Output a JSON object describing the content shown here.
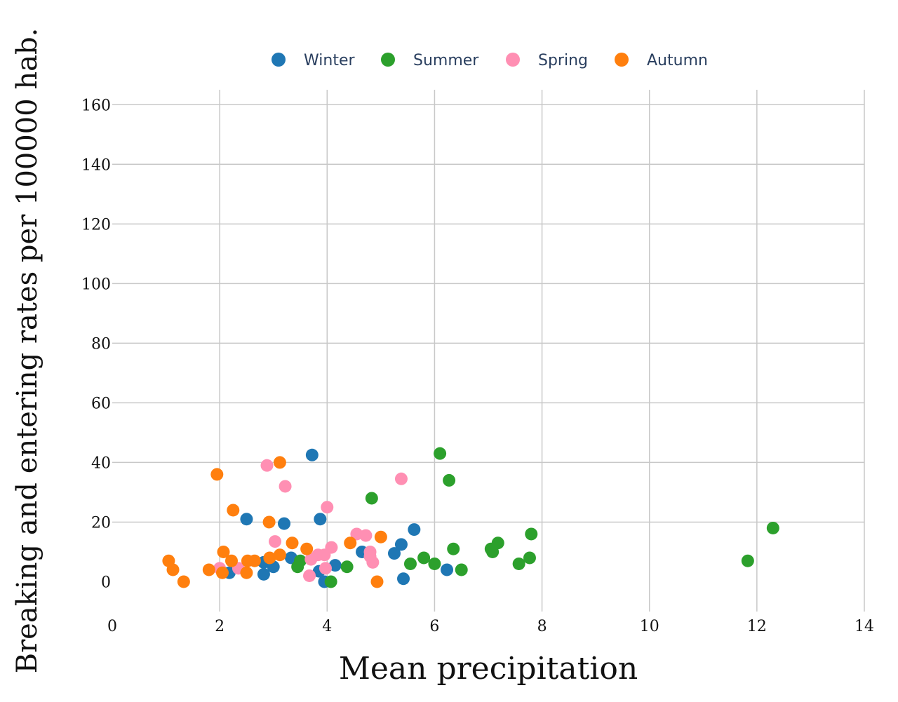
{
  "chart_data": {
    "type": "scatter",
    "xlabel": "Mean precipitation",
    "ylabel": "Breaking and entering rates per 100000 hab.",
    "xlim": [
      0,
      14
    ],
    "ylim": [
      -10,
      165
    ],
    "xticks": [
      0,
      2,
      4,
      6,
      8,
      10,
      12,
      14
    ],
    "yticks": [
      0,
      20,
      40,
      60,
      80,
      100,
      120,
      140,
      160
    ],
    "grid": true,
    "legend_position": "top-center",
    "series": [
      {
        "name": "Winter",
        "color": "#1f77b4",
        "points": [
          [
            3.72,
            42.5
          ],
          [
            2.5,
            21
          ],
          [
            3.2,
            19.5
          ],
          [
            3.87,
            21
          ],
          [
            5.62,
            17.5
          ],
          [
            5.38,
            12.5
          ],
          [
            5.25,
            9.5
          ],
          [
            4.65,
            10
          ],
          [
            3.33,
            8
          ],
          [
            2.82,
            6.5
          ],
          [
            3.0,
            5
          ],
          [
            2.18,
            3
          ],
          [
            2.82,
            2.5
          ],
          [
            3.85,
            3.5
          ],
          [
            3.95,
            0
          ],
          [
            4.15,
            5.5
          ],
          [
            5.42,
            1
          ],
          [
            6.23,
            4
          ]
        ]
      },
      {
        "name": "Summer",
        "color": "#2ca02c",
        "points": [
          [
            6.1,
            43
          ],
          [
            6.27,
            34
          ],
          [
            4.83,
            28
          ],
          [
            7.8,
            16
          ],
          [
            7.18,
            13
          ],
          [
            7.05,
            11
          ],
          [
            7.08,
            10
          ],
          [
            6.35,
            11
          ],
          [
            5.8,
            8
          ],
          [
            6.0,
            6
          ],
          [
            5.55,
            6
          ],
          [
            6.5,
            4
          ],
          [
            7.57,
            6
          ],
          [
            7.77,
            8
          ],
          [
            4.37,
            5
          ],
          [
            3.45,
            5
          ],
          [
            3.5,
            7
          ],
          [
            4.07,
            0
          ],
          [
            12.3,
            18
          ],
          [
            11.83,
            7
          ]
        ]
      },
      {
        "name": "Spring",
        "color": "#ff8fb3",
        "points": [
          [
            2.88,
            39
          ],
          [
            3.22,
            32
          ],
          [
            5.38,
            34.5
          ],
          [
            4.0,
            25
          ],
          [
            4.55,
            16
          ],
          [
            4.72,
            15.5
          ],
          [
            3.03,
            13.5
          ],
          [
            4.08,
            11.5
          ],
          [
            3.83,
            9
          ],
          [
            3.95,
            9
          ],
          [
            4.8,
            10
          ],
          [
            4.85,
            6.5
          ],
          [
            3.7,
            7.5
          ],
          [
            3.97,
            4.5
          ],
          [
            3.67,
            2
          ],
          [
            2.0,
            4.5
          ],
          [
            2.35,
            4.5
          ],
          [
            4.8,
            8.5
          ]
        ]
      },
      {
        "name": "Autumn",
        "color": "#ff7f0e",
        "points": [
          [
            1.95,
            36
          ],
          [
            3.12,
            40
          ],
          [
            2.25,
            24
          ],
          [
            2.92,
            20
          ],
          [
            5.0,
            15
          ],
          [
            4.43,
            13
          ],
          [
            3.35,
            13
          ],
          [
            3.62,
            11
          ],
          [
            2.07,
            10
          ],
          [
            3.12,
            9
          ],
          [
            2.93,
            8
          ],
          [
            2.22,
            7
          ],
          [
            2.52,
            7
          ],
          [
            2.65,
            7
          ],
          [
            1.05,
            7
          ],
          [
            1.13,
            4
          ],
          [
            1.8,
            4
          ],
          [
            2.05,
            3
          ],
          [
            2.5,
            3
          ],
          [
            1.33,
            0
          ],
          [
            4.93,
            0
          ]
        ]
      }
    ]
  }
}
